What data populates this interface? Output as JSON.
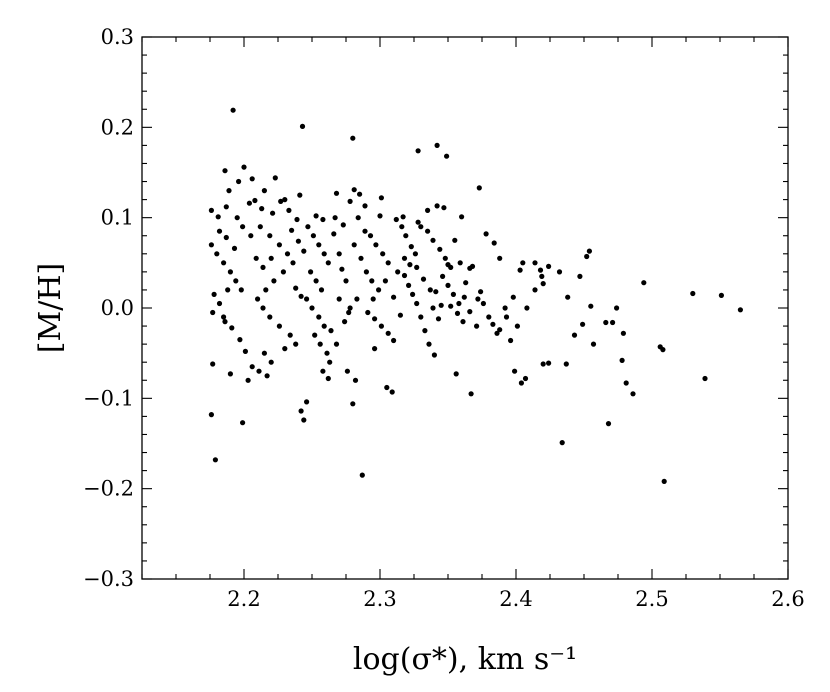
{
  "chart_data": {
    "type": "scatter",
    "title": "",
    "xlabel": "log(σ*), km s⁻¹",
    "ylabel": "[M/H]",
    "xlim": [
      2.125,
      2.6
    ],
    "ylim": [
      -0.3,
      0.3
    ],
    "x_ticks": [
      2.2,
      2.3,
      2.4,
      2.5,
      2.6
    ],
    "x_tick_labels": [
      "2.2",
      "2.3",
      "2.4",
      "2.5",
      "2.6"
    ],
    "y_ticks": [
      -0.3,
      -0.2,
      -0.1,
      0.0,
      0.1,
      0.2,
      0.3
    ],
    "y_tick_labels": [
      "−0.3",
      "−0.2",
      "−0.1",
      "0.0",
      "0.1",
      "0.2",
      "0.3"
    ],
    "grid": false,
    "legend": "none",
    "marker_color": "#000000",
    "points": [
      [
        2.192,
        0.219
      ],
      [
        2.243,
        0.201
      ],
      [
        2.28,
        0.188
      ],
      [
        2.342,
        0.18
      ],
      [
        2.328,
        0.174
      ],
      [
        2.349,
        0.168
      ],
      [
        2.2,
        0.156
      ],
      [
        2.186,
        0.152
      ],
      [
        2.196,
        0.14
      ],
      [
        2.206,
        0.143
      ],
      [
        2.215,
        0.13
      ],
      [
        2.223,
        0.144
      ],
      [
        2.23,
        0.12
      ],
      [
        2.189,
        0.13
      ],
      [
        2.208,
        0.119
      ],
      [
        2.213,
        0.11
      ],
      [
        2.221,
        0.105
      ],
      [
        2.195,
        0.1
      ],
      [
        2.176,
        0.108
      ],
      [
        2.181,
        0.101
      ],
      [
        2.187,
        0.112
      ],
      [
        2.204,
        0.116
      ],
      [
        2.241,
        0.125
      ],
      [
        2.253,
        0.102
      ],
      [
        2.258,
        0.098
      ],
      [
        2.268,
        0.127
      ],
      [
        2.281,
        0.131
      ],
      [
        2.285,
        0.126
      ],
      [
        2.278,
        0.118
      ],
      [
        2.301,
        0.122
      ],
      [
        2.289,
        0.113
      ],
      [
        2.3,
        0.102
      ],
      [
        2.317,
        0.101
      ],
      [
        2.328,
        0.095
      ],
      [
        2.335,
        0.108
      ],
      [
        2.347,
        0.111
      ],
      [
        2.342,
        0.113
      ],
      [
        2.373,
        0.133
      ],
      [
        2.36,
        0.101
      ],
      [
        2.378,
        0.082
      ],
      [
        2.384,
        0.072
      ],
      [
        2.355,
        0.075
      ],
      [
        2.359,
        0.05
      ],
      [
        2.35,
        0.048
      ],
      [
        2.366,
        0.044
      ],
      [
        2.372,
        0.01
      ],
      [
        2.388,
        0.055
      ],
      [
        2.403,
        0.042
      ],
      [
        2.405,
        0.05
      ],
      [
        2.414,
        0.05
      ],
      [
        2.419,
        0.035
      ],
      [
        2.42,
        0.027
      ],
      [
        2.424,
        0.046
      ],
      [
        2.432,
        0.04
      ],
      [
        2.447,
        0.035
      ],
      [
        2.454,
        0.063
      ],
      [
        2.452,
        0.057
      ],
      [
        2.494,
        0.028
      ],
      [
        2.53,
        0.016
      ],
      [
        2.551,
        0.014
      ],
      [
        2.565,
        -0.002
      ],
      [
        2.176,
        0.07
      ],
      [
        2.18,
        0.06
      ],
      [
        2.185,
        0.05
      ],
      [
        2.19,
        0.04
      ],
      [
        2.194,
        0.03
      ],
      [
        2.198,
        0.02
      ],
      [
        2.178,
        0.015
      ],
      [
        2.182,
        0.005
      ],
      [
        2.177,
        -0.005
      ],
      [
        2.186,
        -0.015
      ],
      [
        2.191,
        -0.022
      ],
      [
        2.197,
        -0.035
      ],
      [
        2.201,
        -0.048
      ],
      [
        2.177,
        -0.062
      ],
      [
        2.206,
        -0.065
      ],
      [
        2.211,
        -0.07
      ],
      [
        2.217,
        -0.075
      ],
      [
        2.203,
        -0.08
      ],
      [
        2.19,
        -0.073
      ],
      [
        2.176,
        -0.118
      ],
      [
        2.199,
        -0.127
      ],
      [
        2.179,
        -0.168
      ],
      [
        2.242,
        -0.114
      ],
      [
        2.244,
        -0.124
      ],
      [
        2.246,
        -0.104
      ],
      [
        2.28,
        -0.106
      ],
      [
        2.287,
        -0.185
      ],
      [
        2.434,
        -0.149
      ],
      [
        2.468,
        -0.128
      ],
      [
        2.509,
        -0.192
      ],
      [
        2.506,
        -0.043
      ],
      [
        2.508,
        -0.046
      ],
      [
        2.539,
        -0.078
      ],
      [
        2.486,
        -0.095
      ],
      [
        2.481,
        -0.083
      ],
      [
        2.478,
        -0.058
      ],
      [
        2.399,
        -0.07
      ],
      [
        2.404,
        -0.083
      ],
      [
        2.407,
        -0.078
      ],
      [
        2.42,
        -0.062
      ],
      [
        2.437,
        -0.062
      ],
      [
        2.424,
        -0.061
      ],
      [
        2.212,
        0.09
      ],
      [
        2.219,
        0.08
      ],
      [
        2.226,
        0.07
      ],
      [
        2.232,
        0.06
      ],
      [
        2.236,
        0.05
      ],
      [
        2.229,
        0.04
      ],
      [
        2.222,
        0.03
      ],
      [
        2.216,
        0.02
      ],
      [
        2.21,
        0.01
      ],
      [
        2.214,
        0.0
      ],
      [
        2.219,
        -0.01
      ],
      [
        2.226,
        -0.02
      ],
      [
        2.234,
        -0.03
      ],
      [
        2.238,
        -0.04
      ],
      [
        2.247,
        0.09
      ],
      [
        2.251,
        0.08
      ],
      [
        2.255,
        0.07
      ],
      [
        2.259,
        0.06
      ],
      [
        2.262,
        0.05
      ],
      [
        2.249,
        0.04
      ],
      [
        2.253,
        0.03
      ],
      [
        2.257,
        0.02
      ],
      [
        2.246,
        0.01
      ],
      [
        2.25,
        0.0
      ],
      [
        2.255,
        -0.01
      ],
      [
        2.259,
        -0.02
      ],
      [
        2.252,
        -0.03
      ],
      [
        2.256,
        -0.04
      ],
      [
        2.261,
        -0.05
      ],
      [
        2.263,
        -0.06
      ],
      [
        2.258,
        -0.07
      ],
      [
        2.262,
        -0.078
      ],
      [
        2.266,
        0.082
      ],
      [
        2.27,
        0.06
      ],
      [
        2.272,
        0.043
      ],
      [
        2.275,
        0.03
      ],
      [
        2.27,
        0.01
      ],
      [
        2.277,
        -0.005
      ],
      [
        2.283,
        0.01
      ],
      [
        2.289,
        0.085
      ],
      [
        2.293,
        0.08
      ],
      [
        2.297,
        0.07
      ],
      [
        2.302,
        0.06
      ],
      [
        2.306,
        0.05
      ],
      [
        2.304,
        0.03
      ],
      [
        2.299,
        0.02
      ],
      [
        2.295,
        0.01
      ],
      [
        2.291,
        -0.005
      ],
      [
        2.296,
        -0.012
      ],
      [
        2.301,
        -0.02
      ],
      [
        2.306,
        -0.028
      ],
      [
        2.31,
        -0.036
      ],
      [
        2.296,
        -0.045
      ],
      [
        2.305,
        -0.088
      ],
      [
        2.309,
        -0.093
      ],
      [
        2.312,
        0.098
      ],
      [
        2.316,
        0.09
      ],
      [
        2.319,
        0.08
      ],
      [
        2.323,
        0.068
      ],
      [
        2.326,
        0.06
      ],
      [
        2.322,
        0.048
      ],
      [
        2.318,
        0.036
      ],
      [
        2.321,
        0.025
      ],
      [
        2.324,
        0.015
      ],
      [
        2.327,
        0.005
      ],
      [
        2.33,
        -0.01
      ],
      [
        2.333,
        -0.025
      ],
      [
        2.336,
        -0.04
      ],
      [
        2.34,
        -0.052
      ],
      [
        2.33,
        0.09
      ],
      [
        2.335,
        0.085
      ],
      [
        2.339,
        0.075
      ],
      [
        2.344,
        0.065
      ],
      [
        2.348,
        0.055
      ],
      [
        2.352,
        0.045
      ],
      [
        2.346,
        0.035
      ],
      [
        2.35,
        0.025
      ],
      [
        2.354,
        0.015
      ],
      [
        2.358,
        0.005
      ],
      [
        2.345,
        0.003
      ],
      [
        2.341,
        0.018
      ],
      [
        2.356,
        -0.073
      ],
      [
        2.367,
        -0.095
      ],
      [
        2.38,
        -0.01
      ],
      [
        2.383,
        -0.018
      ],
      [
        2.388,
        -0.024
      ],
      [
        2.393,
        -0.01
      ],
      [
        2.398,
        0.012
      ],
      [
        2.392,
        0.0
      ],
      [
        2.386,
        -0.028
      ],
      [
        2.376,
        0.005
      ],
      [
        2.363,
        0.028
      ],
      [
        2.368,
        0.046
      ],
      [
        2.438,
        0.012
      ],
      [
        2.443,
        -0.03
      ],
      [
        2.449,
        -0.018
      ],
      [
        2.455,
        0.002
      ],
      [
        2.457,
        -0.04
      ],
      [
        2.466,
        -0.016
      ],
      [
        2.471,
        -0.016
      ],
      [
        2.474,
        0.0
      ],
      [
        2.479,
        -0.028
      ],
      [
        2.227,
        0.118
      ],
      [
        2.233,
        0.108
      ],
      [
        2.239,
        0.098
      ],
      [
        2.235,
        0.086
      ],
      [
        2.24,
        0.074
      ],
      [
        2.244,
        0.063
      ],
      [
        2.238,
        0.022
      ],
      [
        2.242,
        0.013
      ],
      [
        2.182,
        0.085
      ],
      [
        2.187,
        0.078
      ],
      [
        2.193,
        0.066
      ],
      [
        2.199,
        0.09
      ],
      [
        2.205,
        0.08
      ],
      [
        2.209,
        0.055
      ],
      [
        2.214,
        0.045
      ],
      [
        2.22,
        0.055
      ],
      [
        2.267,
        0.1
      ],
      [
        2.273,
        0.092
      ],
      [
        2.284,
        0.1
      ],
      [
        2.281,
        0.07
      ],
      [
        2.286,
        0.055
      ],
      [
        2.29,
        0.04
      ],
      [
        2.294,
        0.03
      ],
      [
        2.276,
        -0.07
      ],
      [
        2.282,
        -0.08
      ],
      [
        2.31,
        0.012
      ],
      [
        2.315,
        -0.008
      ],
      [
        2.339,
        0.0
      ],
      [
        2.343,
        -0.012
      ],
      [
        2.362,
        0.012
      ],
      [
        2.371,
        -0.02
      ],
      [
        2.22,
        -0.06
      ],
      [
        2.23,
        -0.045
      ],
      [
        2.215,
        -0.05
      ],
      [
        2.185,
        -0.01
      ],
      [
        2.188,
        0.02
      ],
      [
        2.268,
        -0.04
      ],
      [
        2.264,
        -0.025
      ],
      [
        2.274,
        -0.015
      ],
      [
        2.278,
        0.0
      ],
      [
        2.313,
        0.04
      ],
      [
        2.318,
        0.055
      ],
      [
        2.327,
        0.045
      ],
      [
        2.332,
        0.032
      ],
      [
        2.337,
        0.02
      ],
      [
        2.352,
        0.002
      ],
      [
        2.357,
        -0.006
      ],
      [
        2.361,
        -0.015
      ],
      [
        2.366,
        -0.004
      ],
      [
        2.374,
        0.018
      ],
      [
        2.396,
        -0.036
      ],
      [
        2.401,
        -0.02
      ],
      [
        2.408,
        0.0
      ],
      [
        2.414,
        0.02
      ],
      [
        2.418,
        0.042
      ]
    ]
  }
}
